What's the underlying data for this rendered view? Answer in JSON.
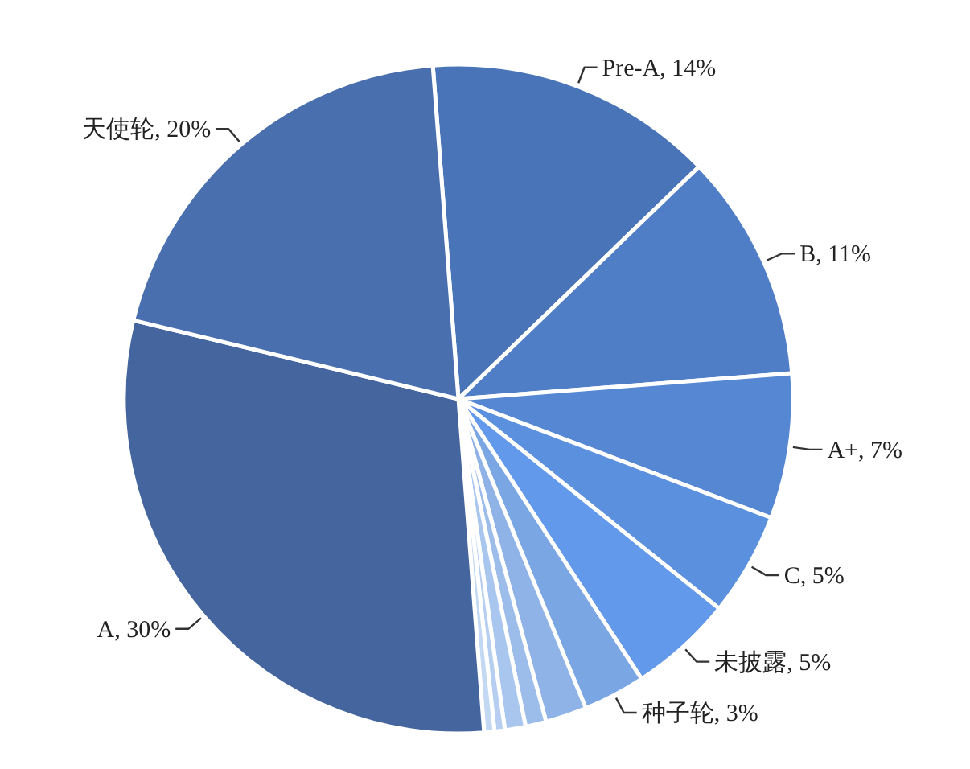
{
  "chart_data": {
    "type": "pie",
    "categories": [
      "Pre-A",
      "B",
      "A+",
      "C",
      "未披露",
      "种子轮",
      null,
      null,
      null,
      null,
      null,
      "A",
      "天使轮"
    ],
    "values": [
      14,
      11,
      7,
      5,
      5,
      3,
      2,
      1,
      1,
      0.5,
      0.5,
      30,
      20
    ],
    "colors": [
      "#4a74b8",
      "#4f7ec6",
      "#5587d2",
      "#5b90de",
      "#6399ea",
      "#7ba6e4",
      "#8fb3e6",
      "#9cbdea",
      "#a9c6ee",
      "#b6cff0",
      "#c3d8f3",
      "#44659e",
      "#4a6fae"
    ],
    "value_labels": [
      ", 14%",
      ", 11%",
      ", 7%",
      ", 5%",
      ", 5%",
      ", 3%",
      null,
      null,
      null,
      null,
      null,
      ", 30%",
      ", 20%"
    ]
  }
}
